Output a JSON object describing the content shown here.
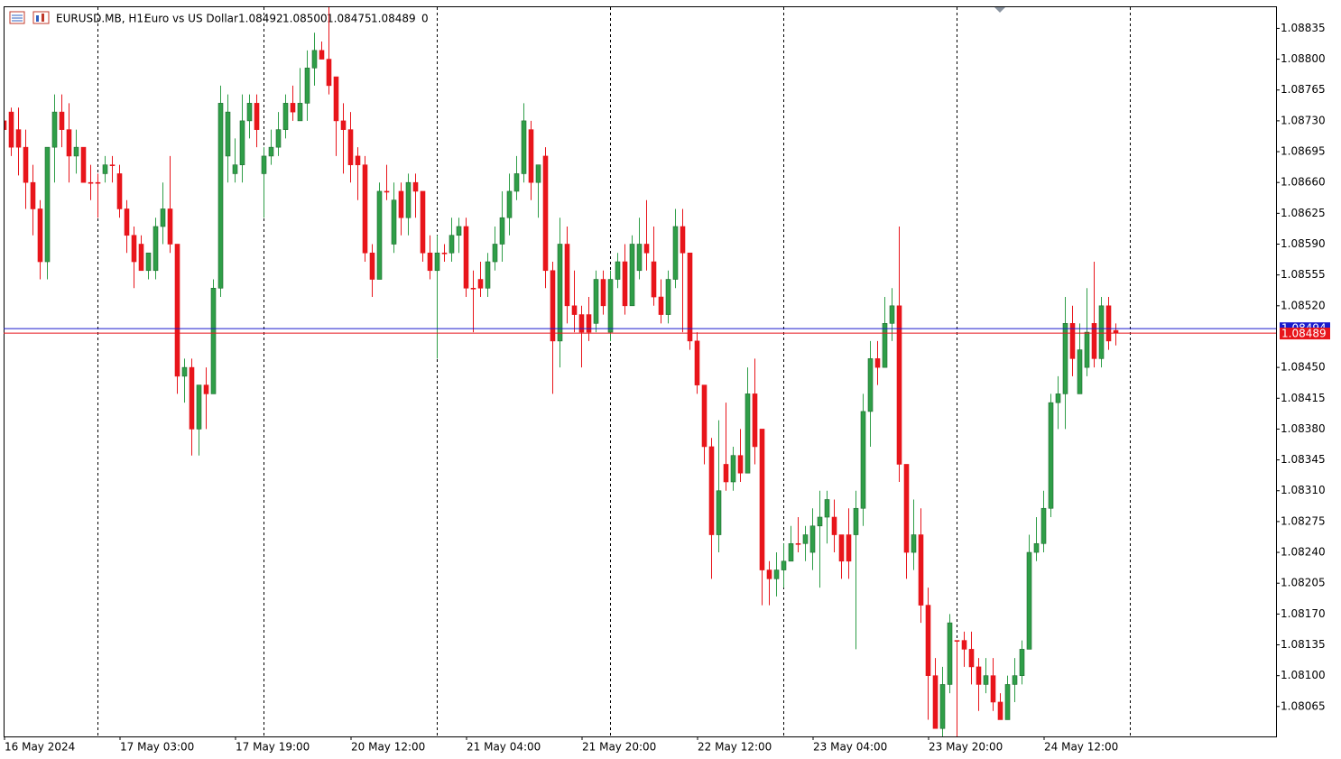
{
  "header": {
    "symbol": "EURUSD.MB, H1:",
    "description": "Euro vs US Dollar",
    "ohlc": [
      "1.08492",
      "1.08500",
      "1.08475",
      "1.08489"
    ],
    "volume": "0"
  },
  "chart_data": {
    "type": "candlestick",
    "up_color": "#2f9e48",
    "down_color": "#e8151b",
    "grid": false,
    "ask": {
      "value": 1.08494,
      "label": "1.08494",
      "color": "#1a1acc"
    },
    "bid_color": "#e8151b",
    "ylim": [
      1.08031,
      1.08859
    ],
    "yticks": [
      1.08835,
      {
        "value": 1.088,
        "label": "1.08800"
      },
      1.08765,
      {
        "value": 1.0873,
        "label": "1.08730"
      },
      1.08695,
      {
        "value": 1.0866,
        "label": "1.08660"
      },
      1.08625,
      {
        "value": 1.0859,
        "label": "1.08590"
      },
      1.08555,
      {
        "value": 1.0852,
        "label": "1.08520"
      },
      {
        "value": 1.0845,
        "label": "1.08450"
      },
      1.08415,
      {
        "value": 1.0838,
        "label": "1.08380"
      },
      1.08345,
      {
        "value": 1.0831,
        "label": "1.08310"
      },
      1.08275,
      {
        "value": 1.0824,
        "label": "1.08240"
      },
      1.08205,
      {
        "value": 1.0817,
        "label": "1.08170"
      },
      1.08135,
      {
        "value": 1.081,
        "label": "1.08100"
      },
      1.08065
    ],
    "xticks": [
      {
        "value": 0,
        "label": "16 May 2024"
      },
      {
        "value": 16,
        "label": "17 May 03:00"
      },
      {
        "value": 32,
        "label": "17 May 19:00"
      },
      {
        "value": 48,
        "label": "20 May 12:00"
      },
      {
        "value": 64,
        "label": "21 May 04:00"
      },
      {
        "value": 80,
        "label": "21 May 20:00"
      },
      {
        "value": 96,
        "label": "22 May 12:00"
      },
      {
        "value": 112,
        "label": "23 May 04:00"
      },
      {
        "value": 128,
        "label": "23 May 20:00"
      },
      {
        "value": 144,
        "label": "24 May 12:00"
      }
    ],
    "open": [
      1.0873,
      1.0874,
      1.0872,
      1.087,
      1.0866,
      1.0863,
      1.0857,
      1.087,
      1.0874,
      1.0872,
      1.0869,
      1.087,
      1.0866,
      1.0866,
      1.0867,
      1.0868,
      1.0867,
      1.0863,
      1.086,
      1.0859,
      1.0856,
      1.0856,
      1.0861,
      1.0863,
      1.0859,
      1.0844,
      1.0845,
      1.0838,
      1.0843,
      1.0842,
      1.0854,
      1.0869,
      1.0867,
      1.0868,
      1.0873,
      1.0875,
      1.0867,
      1.0869,
      1.087,
      1.0872,
      1.0875,
      1.0873,
      1.0875,
      1.0879,
      1.0881,
      1.088,
      1.0878,
      1.0873,
      1.0872,
      1.0869,
      1.0868,
      1.0858,
      1.0855,
      1.0865,
      1.0859,
      1.0865,
      1.0862,
      1.0866,
      1.0865,
      1.0858,
      1.0856,
      1.0858,
      1.0858,
      1.086,
      1.0861,
      1.0854,
      1.0855,
      1.0854,
      1.0857,
      1.0859,
      1.0862,
      1.0865,
      1.0867,
      1.0872,
      1.0866,
      1.0869,
      1.0856,
      1.0848,
      1.0859,
      1.0852,
      1.0851,
      1.0851,
      1.085,
      1.0855,
      1.0849,
      1.0855,
      1.0857,
      1.0852,
      1.0856,
      1.0859,
      1.0857,
      1.0853,
      1.0851,
      1.0855,
      1.0861,
      1.0858,
      1.0848,
      1.0843,
      1.0836,
      1.0826,
      1.0834,
      1.0832,
      1.0835,
      1.0833,
      1.0842,
      1.0838,
      1.0822,
      1.0821,
      1.0822,
      1.0823,
      1.0825,
      1.0825,
      1.0824,
      1.0827,
      1.0828,
      1.0828,
      1.0826,
      1.0826,
      1.0826,
      1.0829,
      1.084,
      1.0846,
      1.0845,
      1.085,
      1.0852,
      1.0834,
      1.0824,
      1.0826,
      1.0818,
      1.081,
      1.0804,
      1.0809,
      1.0814,
      1.0814,
      1.0813,
      1.0811,
      1.0809,
      1.081,
      1.0807,
      1.0805,
      1.0809,
      1.081,
      1.0813,
      1.0824,
      1.0825,
      1.0829,
      1.0841,
      1.0842,
      1.085,
      1.0842,
      1.0845,
      1.085,
      1.0846,
      1.0852,
      1.08492
    ],
    "high": [
      1.0874,
      1.08745,
      1.08745,
      1.0872,
      1.0868,
      1.0864,
      1.087,
      1.0876,
      1.0876,
      1.0875,
      1.0872,
      1.087,
      1.0868,
      1.0867,
      1.0869,
      1.0869,
      1.0868,
      1.0864,
      1.0861,
      1.086,
      1.0858,
      1.0862,
      1.0866,
      1.0869,
      1.0859,
      1.0846,
      1.0846,
      1.0843,
      1.0845,
      1.0855,
      1.0877,
      1.0876,
      1.0871,
      1.0876,
      1.0876,
      1.0876,
      1.087,
      1.0872,
      1.0874,
      1.0876,
      1.0877,
      1.0879,
      1.0881,
      1.0883,
      1.0882,
      1.0886,
      1.0878,
      1.0875,
      1.0874,
      1.087,
      1.0869,
      1.0859,
      1.0866,
      1.0868,
      1.0866,
      1.0866,
      1.0867,
      1.0867,
      1.0865,
      1.086,
      1.086,
      1.0859,
      1.0862,
      1.0862,
      1.0862,
      1.0856,
      1.0857,
      1.0858,
      1.0861,
      1.0865,
      1.0867,
      1.0869,
      1.0875,
      1.0873,
      1.0868,
      1.087,
      1.0857,
      1.0862,
      1.0861,
      1.0856,
      1.0852,
      1.0853,
      1.0856,
      1.0856,
      1.0856,
      1.0858,
      1.0859,
      1.086,
      1.0862,
      1.0864,
      1.0861,
      1.0855,
      1.0856,
      1.0863,
      1.0863,
      1.0858,
      1.0849,
      1.0843,
      1.0837,
      1.0839,
      1.0841,
      1.0836,
      1.0838,
      1.0845,
      1.0846,
      1.0838,
      1.0823,
      1.0824,
      1.0825,
      1.0827,
      1.0828,
      1.0827,
      1.0829,
      1.0831,
      1.0831,
      1.083,
      1.0826,
      1.0829,
      1.0831,
      1.0842,
      1.0848,
      1.0848,
      1.0853,
      1.0854,
      1.0861,
      1.0834,
      1.083,
      1.0829,
      1.082,
      1.0812,
      1.0811,
      1.0817,
      1.0814,
      1.0815,
      1.0815,
      1.0812,
      1.0812,
      1.0812,
      1.0808,
      1.081,
      1.0812,
      1.0814,
      1.0826,
      1.0828,
      1.0831,
      1.0842,
      1.0844,
      1.0853,
      1.0852,
      1.085,
      1.0854,
      1.0857,
      1.0853,
      1.0853,
      1.085
    ],
    "low": [
      1.087,
      1.0869,
      1.08668,
      1.0863,
      1.086,
      1.0855,
      1.0855,
      1.0866,
      1.087,
      1.0866,
      1.0867,
      1.0866,
      1.0864,
      1.0862,
      1.0866,
      1.0866,
      1.0862,
      1.0858,
      1.0854,
      1.0856,
      1.0855,
      1.0855,
      1.0859,
      1.0858,
      1.0842,
      1.0841,
      1.0835,
      1.0835,
      1.0838,
      1.0842,
      1.0853,
      1.0866,
      1.0866,
      1.0866,
      1.0871,
      1.087,
      1.0862,
      1.0868,
      1.0869,
      1.0871,
      1.0873,
      1.0873,
      1.0873,
      1.0877,
      1.088,
      1.0876,
      1.0869,
      1.0867,
      1.0866,
      1.0864,
      1.0857,
      1.0853,
      1.0855,
      1.0864,
      1.0858,
      1.086,
      1.086,
      1.0862,
      1.0857,
      1.0855,
      1.0846,
      1.0857,
      1.0857,
      1.0858,
      1.0853,
      1.0849,
      1.0853,
      1.0853,
      1.0856,
      1.0857,
      1.086,
      1.0864,
      1.0866,
      1.0864,
      1.0862,
      1.0854,
      1.0842,
      1.0845,
      1.085,
      1.0849,
      1.0845,
      1.0848,
      1.0849,
      1.0851,
      1.0848,
      1.0854,
      1.0851,
      1.0852,
      1.0855,
      1.0856,
      1.0852,
      1.085,
      1.085,
      1.0854,
      1.0849,
      1.0847,
      1.0842,
      1.0834,
      1.0821,
      1.0824,
      1.0831,
      1.0831,
      1.0832,
      1.0833,
      1.0834,
      1.0818,
      1.0818,
      1.0819,
      1.082,
      1.0823,
      1.0824,
      1.0823,
      1.0822,
      1.082,
      1.0825,
      1.0824,
      1.0821,
      1.0821,
      1.0813,
      1.0827,
      1.0836,
      1.0843,
      1.0845,
      1.0848,
      1.0832,
      1.0821,
      1.0822,
      1.0816,
      1.0805,
      1.0804,
      1.0803,
      1.0808,
      1.0803,
      1.0811,
      1.0809,
      1.0806,
      1.0808,
      1.0806,
      1.0805,
      1.0805,
      1.0807,
      1.0809,
      1.0813,
      1.0823,
      1.0824,
      1.0828,
      1.0838,
      1.0838,
      1.0844,
      1.0842,
      1.0844,
      1.0845,
      1.0845,
      1.0847,
      1.08475
    ],
    "close": [
      1.0872,
      1.087,
      1.087,
      1.0866,
      1.0863,
      1.0857,
      1.087,
      1.0874,
      1.0872,
      1.0869,
      1.087,
      1.0866,
      1.0866,
      1.0866,
      1.0868,
      1.0868,
      1.0863,
      1.086,
      1.0857,
      1.0856,
      1.0858,
      1.0861,
      1.0863,
      1.0859,
      1.0844,
      1.0845,
      1.0838,
      1.0843,
      1.0842,
      1.0854,
      1.0875,
      1.0874,
      1.0868,
      1.0873,
      1.0875,
      1.0872,
      1.0869,
      1.087,
      1.0872,
      1.0875,
      1.0874,
      1.0875,
      1.0879,
      1.0881,
      1.088,
      1.0877,
      1.0873,
      1.0872,
      1.0868,
      1.0868,
      1.0858,
      1.0855,
      1.0865,
      1.0865,
      1.0864,
      1.0862,
      1.0866,
      1.0865,
      1.0858,
      1.0856,
      1.0858,
      1.0858,
      1.086,
      1.0861,
      1.0854,
      1.0854,
      1.0854,
      1.0857,
      1.0859,
      1.0862,
      1.0865,
      1.0867,
      1.0873,
      1.0866,
      1.0868,
      1.0856,
      1.0848,
      1.0859,
      1.0852,
      1.0851,
      1.0849,
      1.0849,
      1.0855,
      1.0852,
      1.0855,
      1.0857,
      1.0852,
      1.0859,
      1.0859,
      1.0858,
      1.0853,
      1.0851,
      1.0855,
      1.0861,
      1.0858,
      1.0848,
      1.0843,
      1.0836,
      1.0826,
      1.0831,
      1.0832,
      1.0835,
      1.0833,
      1.0842,
      1.0836,
      1.0822,
      1.0821,
      1.0822,
      1.0823,
      1.0825,
      1.0825,
      1.0826,
      1.0827,
      1.0828,
      1.083,
      1.0826,
      1.0823,
      1.0823,
      1.0829,
      1.084,
      1.0846,
      1.0845,
      1.085,
      1.0852,
      1.0834,
      1.0824,
      1.0826,
      1.0818,
      1.081,
      1.0804,
      1.0809,
      1.0816,
      1.0814,
      1.0813,
      1.0811,
      1.0809,
      1.081,
      1.0807,
      1.0805,
      1.0809,
      1.081,
      1.0813,
      1.0824,
      1.0825,
      1.0829,
      1.0841,
      1.0842,
      1.085,
      1.0846,
      1.0847,
      1.0849,
      1.0846,
      1.0852,
      1.0848,
      1.08489
    ]
  }
}
